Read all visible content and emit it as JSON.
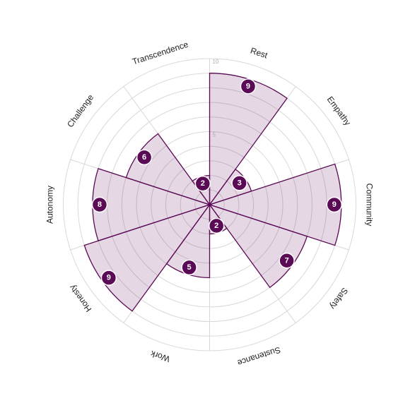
{
  "chart_data": {
    "type": "polar-area",
    "categories": [
      "Rest",
      "Empathy",
      "Community",
      "Safety",
      "Sustenance",
      "Work",
      "Honesty",
      "Autonomy",
      "Challenge",
      "Transcendence"
    ],
    "values": [
      9,
      3,
      9,
      7,
      2,
      5,
      9,
      8,
      6,
      2
    ],
    "rlim": [
      0,
      10
    ],
    "rings": 10,
    "r_tick_labels": [
      "5",
      "10"
    ],
    "grid": true,
    "legend": "none",
    "colors": {
      "accent": "#5b0a55",
      "fill": "rgba(91,10,85,0.16)",
      "grid": "#d8d8d8",
      "tick_text": "#aaaaaa"
    }
  }
}
